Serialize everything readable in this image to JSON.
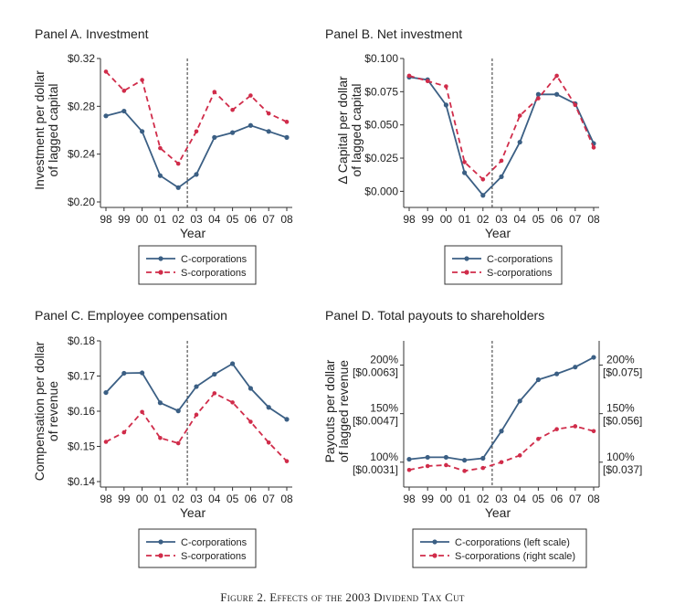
{
  "caption": "Figure 2. Effects of the 2003 Dividend Tax Cut",
  "colors": {
    "c_corp": "#3b5f84",
    "s_corp": "#d02c4a",
    "axis": "#333333"
  },
  "chart_data": [
    {
      "type": "line",
      "panel_title": "Panel A. Investment",
      "xlabel": "Year",
      "ylabel": [
        "Investment per dollar",
        "of lagged capital"
      ],
      "categories": [
        "98",
        "99",
        "00",
        "01",
        "02",
        "03",
        "04",
        "05",
        "06",
        "07",
        "08"
      ],
      "ylim": [
        0.2,
        0.32
      ],
      "yticks": [
        0.2,
        0.24,
        0.28,
        0.32
      ],
      "ytick_labels": [
        "$0.20",
        "$0.24",
        "$0.28",
        "$0.32"
      ],
      "event_line_x": 4.5,
      "series": [
        {
          "name": "C-corporations",
          "values": [
            0.272,
            0.276,
            0.259,
            0.222,
            0.212,
            0.223,
            0.254,
            0.258,
            0.264,
            0.259,
            0.254
          ]
        },
        {
          "name": "S-corporations",
          "values": [
            0.309,
            0.293,
            0.302,
            0.245,
            0.232,
            0.259,
            0.292,
            0.277,
            0.289,
            0.274,
            0.267
          ]
        }
      ],
      "legend": [
        "C-corporations",
        "S-corporations"
      ],
      "legend_position": "below"
    },
    {
      "type": "line",
      "panel_title": "Panel B.  Net investment",
      "xlabel": "Year",
      "ylabel": [
        "Δ Capital per dollar",
        "of lagged capital"
      ],
      "categories": [
        "98",
        "99",
        "00",
        "01",
        "02",
        "03",
        "04",
        "05",
        "06",
        "07",
        "08"
      ],
      "ylim": [
        -0.008,
        0.1
      ],
      "yticks": [
        0.0,
        0.025,
        0.05,
        0.075,
        0.1
      ],
      "ytick_labels": [
        "$0.000",
        "$0.025",
        "$0.050",
        "$0.075",
        "$0.100"
      ],
      "event_line_x": 4.5,
      "series": [
        {
          "name": "C-corporations",
          "values": [
            0.086,
            0.084,
            0.065,
            0.014,
            -0.003,
            0.011,
            0.037,
            0.073,
            0.073,
            0.066,
            0.036
          ]
        },
        {
          "name": "S-corporations",
          "values": [
            0.087,
            0.083,
            0.079,
            0.022,
            0.009,
            0.023,
            0.057,
            0.07,
            0.087,
            0.065,
            0.033
          ]
        }
      ],
      "legend": [
        "C-corporations",
        "S-corporations"
      ],
      "legend_position": "below"
    },
    {
      "type": "line",
      "panel_title": "Panel C. Employee compensation",
      "xlabel": "Year",
      "ylabel": [
        "Compensation per dollar",
        "of revenue"
      ],
      "categories": [
        "98",
        "99",
        "00",
        "01",
        "02",
        "03",
        "04",
        "05",
        "06",
        "07",
        "08"
      ],
      "ylim": [
        0.14,
        0.18
      ],
      "yticks": [
        0.14,
        0.15,
        0.16,
        0.17,
        0.18
      ],
      "ytick_labels": [
        "$0.14",
        "$0.15",
        "$0.16",
        "$0.17",
        "$0.18"
      ],
      "event_line_x": 4.5,
      "series": [
        {
          "name": "C-corporations",
          "values": [
            0.1653,
            0.1708,
            0.1709,
            0.1624,
            0.1601,
            0.167,
            0.1705,
            0.1735,
            0.1665,
            0.1611,
            0.1577
          ]
        },
        {
          "name": "S-corporations",
          "values": [
            0.1513,
            0.154,
            0.1598,
            0.1524,
            0.1509,
            0.159,
            0.1651,
            0.1625,
            0.157,
            0.1511,
            0.1458
          ]
        }
      ],
      "legend": [
        "C-corporations",
        "S-corporations"
      ],
      "legend_position": "below"
    },
    {
      "type": "line",
      "panel_title": "Panel D. Total payouts to shareholders",
      "xlabel": "Year",
      "ylabel": [
        "Payouts per dollar",
        "of lagged revenue"
      ],
      "categories": [
        "98",
        "99",
        "00",
        "01",
        "02",
        "03",
        "04",
        "05",
        "06",
        "07",
        "08"
      ],
      "ylim": [
        0.8,
        2.25
      ],
      "yticks": [
        1.0,
        1.5,
        2.0
      ],
      "ytick_labels_left": [
        "100%",
        "150%",
        "200%"
      ],
      "ytick_sublabels_left": [
        "[$0.0031]",
        "[$0.0047]",
        "[$0.0063]"
      ],
      "ytick_labels_right": [
        "100%",
        "150%",
        "200%"
      ],
      "ytick_sublabels_right": [
        "[$0.037]",
        "[$0.056]",
        "[$0.075]"
      ],
      "event_line_x": 4.5,
      "series": [
        {
          "name": "C-corporations (left scale)",
          "values": [
            1.03,
            1.05,
            1.05,
            1.02,
            1.04,
            1.32,
            1.63,
            1.85,
            1.91,
            1.98,
            2.08
          ]
        },
        {
          "name": "S-corporations (right scale)",
          "values": [
            0.92,
            0.96,
            0.97,
            0.91,
            0.94,
            1.0,
            1.07,
            1.24,
            1.34,
            1.37,
            1.32
          ]
        }
      ],
      "legend": [
        "C-corporations (left scale)",
        "S-corporations (right scale)"
      ],
      "legend_position": "below"
    }
  ]
}
